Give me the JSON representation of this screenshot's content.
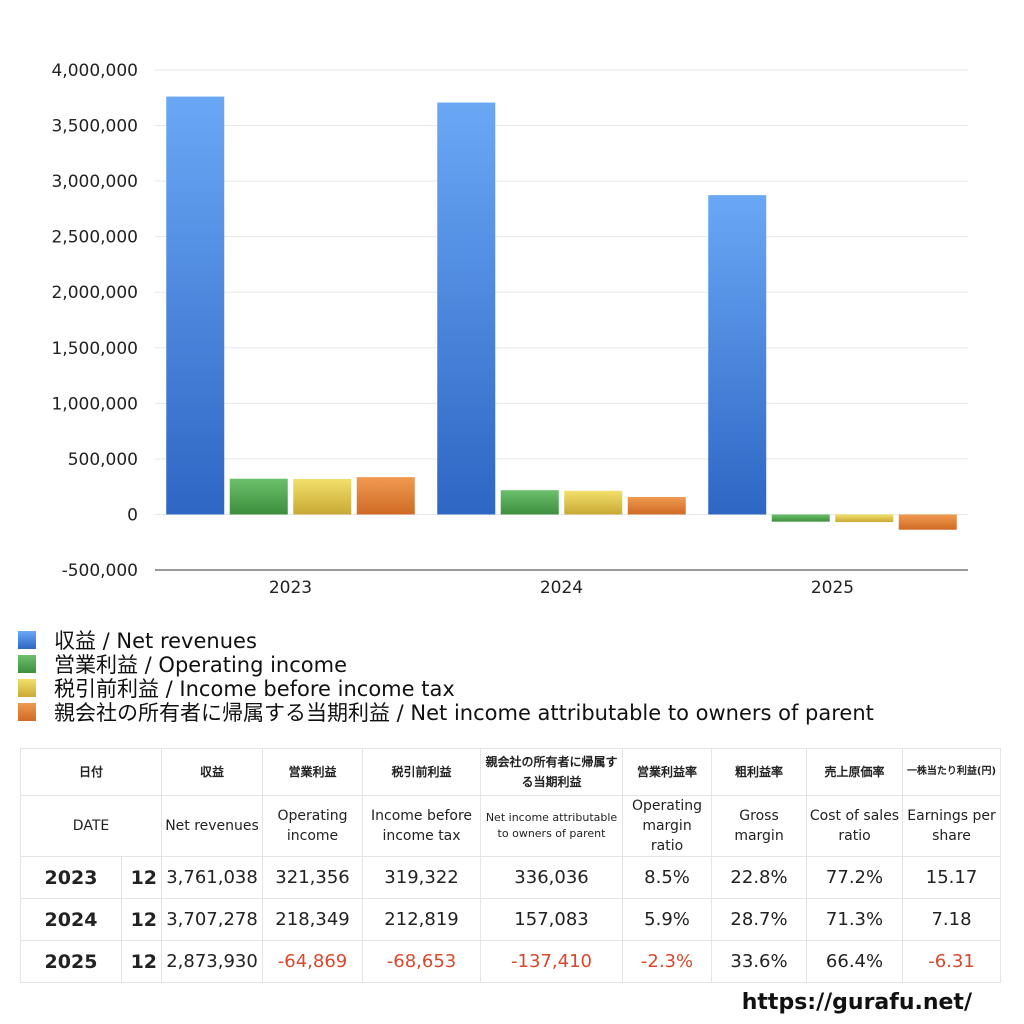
{
  "chart_data": {
    "type": "bar",
    "categories": [
      "2023",
      "2024",
      "2025"
    ],
    "series": [
      {
        "name": "収益 / Net revenues",
        "values": [
          3761038,
          3707278,
          2873930
        ],
        "color": "#3b7fe0"
      },
      {
        "name": "営業利益 / Operating income",
        "values": [
          321356,
          218349,
          -64869
        ],
        "color": "#4aa74a"
      },
      {
        "name": "税引前利益 / Income before income tax",
        "values": [
          319322,
          212819,
          -68653
        ],
        "color": "#e3c93c"
      },
      {
        "name": "親会社の所有者に帰属する当期利益 / Net income attributable to owners of parent",
        "values": [
          336036,
          157083,
          -137410
        ],
        "color": "#e07b33"
      }
    ],
    "ylim": [
      -500000,
      4000000
    ],
    "yticks": [
      4000000,
      3500000,
      3000000,
      2500000,
      2000000,
      1500000,
      1000000,
      500000,
      0,
      -500000
    ],
    "ytick_labels": [
      "4,000,000",
      "3,500,000",
      "3,000,000",
      "2,500,000",
      "2,000,000",
      "1,500,000",
      "1,000,000",
      "500,000",
      "0",
      "-500,000"
    ],
    "grid": true,
    "legend_position": "bottom-left"
  },
  "table": {
    "headers_ja": [
      "日付",
      "収益",
      "営業利益",
      "税引前利益",
      "親会社の所有者に帰属する当期利益",
      "営業利益率",
      "粗利益率",
      "売上原価率",
      "一株当たり利益(円)"
    ],
    "headers_en": [
      "DATE",
      "Net revenues",
      "Operating income",
      "Income before income tax",
      "Net income attributable to owners of parent",
      "Operating margin ratio",
      "Gross margin",
      "Cost of sales ratio",
      "Earnings per share"
    ],
    "rows": [
      {
        "year": "2023",
        "month": "12",
        "cells": [
          "3,761,038",
          "321,356",
          "319,322",
          "336,036",
          "8.5%",
          "22.8%",
          "77.2%",
          "15.17"
        ],
        "negative": [
          false,
          false,
          false,
          false,
          false,
          false,
          false,
          false
        ]
      },
      {
        "year": "2024",
        "month": "12",
        "cells": [
          "3,707,278",
          "218,349",
          "212,819",
          "157,083",
          "5.9%",
          "28.7%",
          "71.3%",
          "7.18"
        ],
        "negative": [
          false,
          false,
          false,
          false,
          false,
          false,
          false,
          false
        ]
      },
      {
        "year": "2025",
        "month": "12",
        "cells": [
          "2,873,930",
          "-64,869",
          "-68,653",
          "-137,410",
          "-2.3%",
          "33.6%",
          "66.4%",
          "-6.31"
        ],
        "negative": [
          false,
          true,
          true,
          true,
          true,
          false,
          false,
          true
        ]
      }
    ]
  },
  "source": "https://gurafu.net/"
}
